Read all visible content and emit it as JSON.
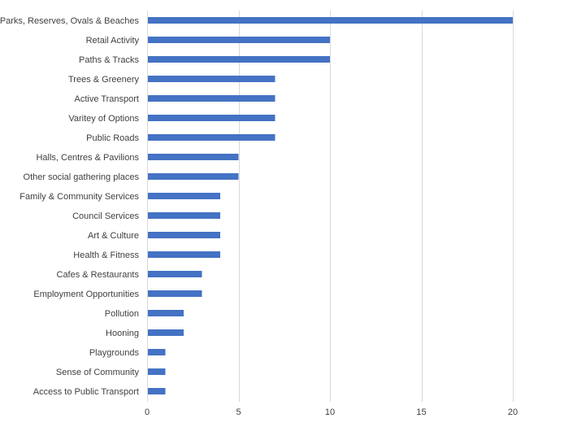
{
  "chart_data": {
    "type": "bar",
    "orientation": "horizontal",
    "title": "",
    "xlabel": "",
    "ylabel": "",
    "xlim": [
      0,
      20
    ],
    "xticks": [
      0,
      5,
      10,
      15,
      20
    ],
    "grid": true,
    "bar_color": "#4472C4",
    "gridline_color": "#D9D9D9",
    "categories": [
      "Parks, Reserves, Ovals & Beaches",
      "Retail Activity",
      "Paths & Tracks",
      "Trees & Greenery",
      "Active Transport",
      "Varitey of Options",
      "Public Roads",
      "Halls, Centres & Pavilions",
      "Other social gathering places",
      "Family & Community Services",
      "Council Services",
      "Art & Culture",
      "Health & Fitness",
      "Cafes & Restaurants",
      "Employment Opportunities",
      "Pollution",
      "Hooning",
      "Playgrounds",
      "Sense of Community",
      "Access to Public Transport"
    ],
    "values": [
      20,
      10,
      10,
      7,
      7,
      7,
      7,
      5,
      5,
      4,
      4,
      4,
      4,
      3,
      3,
      2,
      2,
      1,
      1,
      1
    ]
  }
}
